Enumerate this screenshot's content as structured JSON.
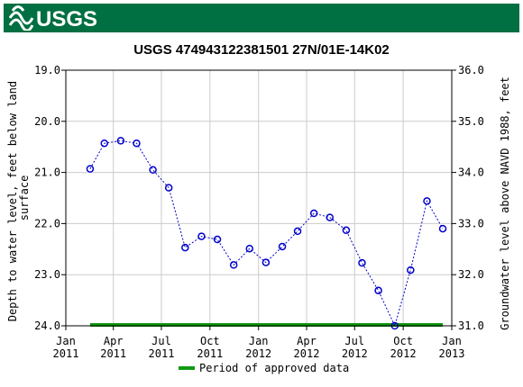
{
  "header": {
    "logo_text": "USGS",
    "brand_color": "#006f41"
  },
  "chart_data": {
    "type": "line",
    "title": "USGS 474943122381501 27N/01E-14K02",
    "ylabel": "Depth to water level, feet below land surface",
    "ylabel_lines": [
      "Depth to water level, feet below land",
      "surface"
    ],
    "y2label": "Groundwater level above NAVD 1988, feet",
    "xlim": [
      "2011-01-01",
      "2013-01-01"
    ],
    "ylim": [
      19.0,
      24.0
    ],
    "y_inverted": true,
    "y2lim": [
      31.0,
      36.0
    ],
    "y_ticks": [
      "19.0",
      "20.0",
      "21.0",
      "22.0",
      "23.0",
      "24.0"
    ],
    "y2_ticks": [
      "36.0",
      "35.0",
      "34.0",
      "33.0",
      "32.0",
      "31.0"
    ],
    "x_ticks": [
      {
        "date": "2011-01-01",
        "line1": "Jan",
        "line2": "2011"
      },
      {
        "date": "2011-04-01",
        "line1": "Apr",
        "line2": "2011"
      },
      {
        "date": "2011-07-01",
        "line1": "Jul",
        "line2": "2011"
      },
      {
        "date": "2011-10-01",
        "line1": "Oct",
        "line2": "2011"
      },
      {
        "date": "2012-01-01",
        "line1": "Jan",
        "line2": "2012"
      },
      {
        "date": "2012-04-01",
        "line1": "Apr",
        "line2": "2012"
      },
      {
        "date": "2012-07-01",
        "line1": "Jul",
        "line2": "2012"
      },
      {
        "date": "2012-10-01",
        "line1": "Oct",
        "line2": "2012"
      },
      {
        "date": "2013-01-01",
        "line1": "Jan",
        "line2": "2013"
      }
    ],
    "grid": true,
    "series": [
      {
        "color": "#0000cc",
        "points": [
          {
            "x": "2011-02-16",
            "y": 20.93
          },
          {
            "x": "2011-03-15",
            "y": 20.43
          },
          {
            "x": "2011-04-15",
            "y": 20.38
          },
          {
            "x": "2011-05-15",
            "y": 20.43
          },
          {
            "x": "2011-06-15",
            "y": 20.95
          },
          {
            "x": "2011-07-15",
            "y": 21.3
          },
          {
            "x": "2011-08-15",
            "y": 22.47
          },
          {
            "x": "2011-09-15",
            "y": 22.25
          },
          {
            "x": "2011-10-15",
            "y": 22.31
          },
          {
            "x": "2011-11-15",
            "y": 22.81
          },
          {
            "x": "2011-12-15",
            "y": 22.49
          },
          {
            "x": "2012-01-15",
            "y": 22.76
          },
          {
            "x": "2012-02-15",
            "y": 22.45
          },
          {
            "x": "2012-03-15",
            "y": 22.15
          },
          {
            "x": "2012-04-15",
            "y": 21.8
          },
          {
            "x": "2012-05-15",
            "y": 21.88
          },
          {
            "x": "2012-06-15",
            "y": 22.13
          },
          {
            "x": "2012-07-15",
            "y": 22.77
          },
          {
            "x": "2012-08-15",
            "y": 23.31
          },
          {
            "x": "2012-09-15",
            "y": 24.0
          },
          {
            "x": "2012-10-15",
            "y": 22.91
          },
          {
            "x": "2012-11-15",
            "y": 21.56
          },
          {
            "x": "2012-12-15",
            "y": 22.1
          }
        ]
      }
    ],
    "approved_period": {
      "start": "2011-02-16",
      "end": "2012-12-15",
      "color": "#119911"
    },
    "legend": {
      "label": "Period of approved data",
      "placement": "bottom-center"
    }
  }
}
